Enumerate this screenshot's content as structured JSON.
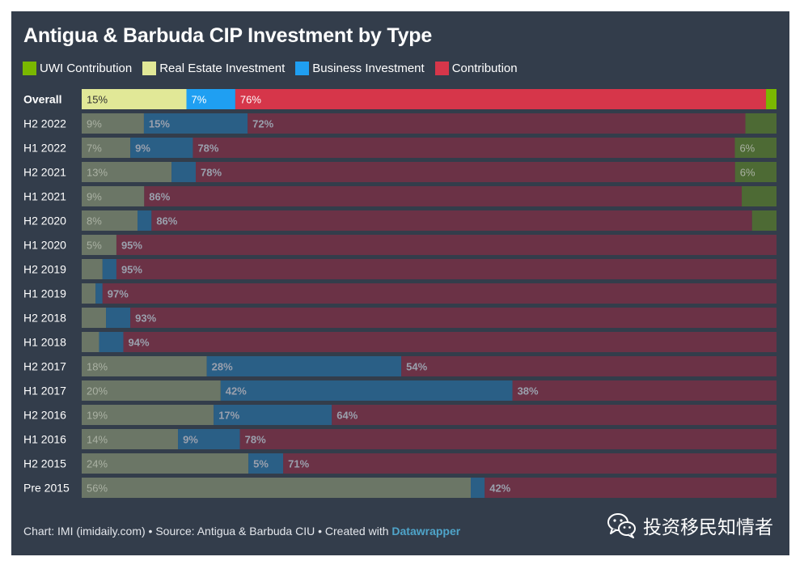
{
  "title": "Antigua & Barbuda CIP Investment by Type",
  "legend": [
    {
      "label": "UWI Contribution",
      "color": "#7ab800"
    },
    {
      "label": "Real Estate Investment",
      "color": "#e1e897"
    },
    {
      "label": "Business Investment",
      "color": "#1f9ff2"
    },
    {
      "label": "Contribution",
      "color": "#d6364a"
    }
  ],
  "footer": {
    "prefix": "Chart: IMI (imidaily.com) • Source: Antigua & Barbuda CIU • Created with ",
    "link": "Datawrapper"
  },
  "watermark": {
    "text": "投资移民知情者",
    "icon": "wechat-icon"
  },
  "chart_data": {
    "type": "bar",
    "orientation": "horizontal",
    "stacked": true,
    "stacked_to_percent": true,
    "categories": [
      "Overall",
      "H2 2022",
      "H1 2022",
      "H2 2021",
      "H1 2021",
      "H2 2020",
      "H1 2020",
      "H2 2019",
      "H1 2019",
      "H2 2018",
      "H1 2018",
      "H2 2017",
      "H1 2017",
      "H2 2016",
      "H1 2016",
      "H2 2015",
      "Pre 2015"
    ],
    "highlighted_category": "Overall",
    "series": [
      {
        "name": "Real Estate Investment",
        "color": "#e1e897",
        "muted_color": "#6b7666",
        "values": [
          15,
          9,
          7,
          13,
          9,
          8,
          5,
          3,
          2,
          3.5,
          2.5,
          18,
          20,
          19,
          14,
          24,
          56
        ],
        "labels": [
          "15%",
          "9%",
          "7%",
          "13%",
          "9%",
          "8%",
          "5%",
          "",
          "",
          "",
          "",
          "18%",
          "20%",
          "19%",
          "14%",
          "24%",
          "56%"
        ]
      },
      {
        "name": "Business Investment",
        "color": "#1f9ff2",
        "muted_color": "#2a5f86",
        "values": [
          7,
          15,
          9,
          3.5,
          0,
          2,
          0,
          2,
          1,
          3.5,
          3.5,
          28,
          42,
          17,
          9,
          5,
          2
        ],
        "labels": [
          "7%",
          "15%",
          "9%",
          "",
          "",
          "",
          "",
          "",
          "",
          "",
          "",
          "28%",
          "42%",
          "17%",
          "9%",
          "5%",
          ""
        ]
      },
      {
        "name": "Contribution",
        "color": "#d6364a",
        "muted_color": "#6b3246",
        "values": [
          76,
          72,
          78,
          78,
          86,
          86,
          95,
          95,
          97,
          93,
          94,
          54,
          38,
          64,
          78,
          71,
          42
        ],
        "labels": [
          "76%",
          "72%",
          "78%",
          "78%",
          "86%",
          "86%",
          "95%",
          "95%",
          "97%",
          "93%",
          "94%",
          "54%",
          "38%",
          "64%",
          "78%",
          "71%",
          "42%"
        ]
      },
      {
        "name": "UWI Contribution",
        "color": "#7ab800",
        "muted_color": "#4d6a34",
        "values": [
          1.5,
          4.5,
          6,
          6,
          5,
          3.5,
          0,
          0,
          0,
          0,
          0,
          0,
          0,
          0,
          0,
          0,
          0
        ],
        "labels": [
          "",
          "",
          "6%",
          "6%",
          "",
          "",
          "",
          "",
          "",
          "",
          "",
          "",
          "",
          "",
          "",
          "",
          ""
        ]
      }
    ],
    "xlim": [
      0,
      100
    ]
  }
}
